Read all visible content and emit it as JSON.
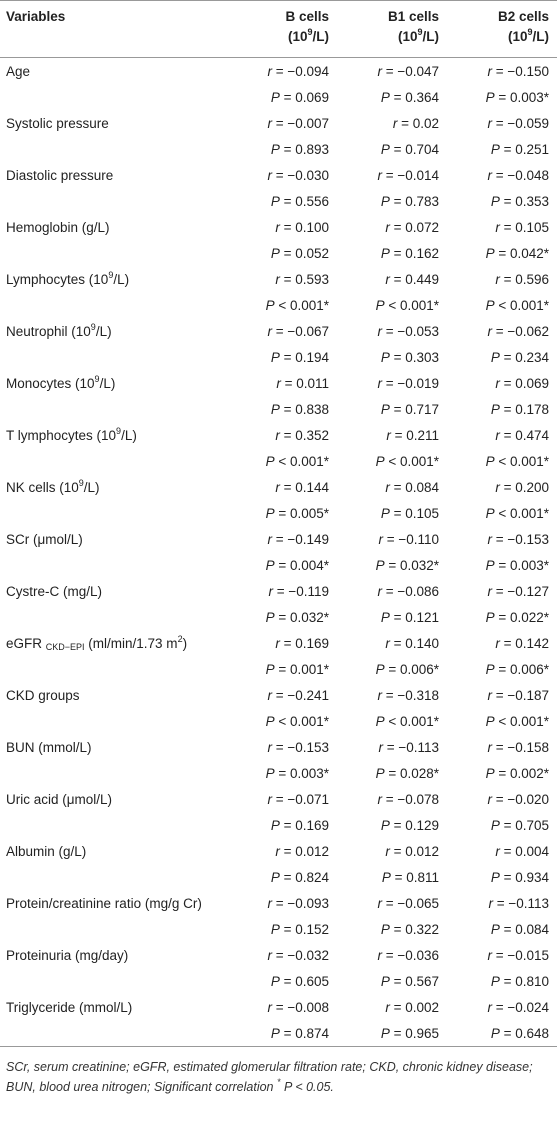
{
  "table": {
    "headers": [
      {
        "main": "Variables"
      },
      {
        "main": "B cells",
        "mid": "(10",
        "sup": "9",
        "end": "/L)"
      },
      {
        "main": "B1 cells",
        "mid": "(10",
        "sup": "9",
        "end": "/L)"
      },
      {
        "main": "B2 cells",
        "mid": "(10",
        "sup": "9",
        "end": "/L)"
      }
    ],
    "rows": [
      {
        "label": {
          "main": "Age"
        },
        "r": [
          "r = −0.094",
          "r = −0.047",
          "r = −0.150"
        ],
        "P": [
          "P = 0.069",
          "P = 0.364",
          "P = 0.003*"
        ]
      },
      {
        "label": {
          "main": "Systolic pressure"
        },
        "r": [
          "r = −0.007",
          "r = 0.02",
          "r = −0.059"
        ],
        "P": [
          "P = 0.893",
          "P = 0.704",
          "P = 0.251"
        ]
      },
      {
        "label": {
          "main": "Diastolic pressure"
        },
        "r": [
          "r = −0.030",
          "r = −0.014",
          "r = −0.048"
        ],
        "P": [
          "P = 0.556",
          "P = 0.783",
          "P = 0.353"
        ]
      },
      {
        "label": {
          "main": "Hemoglobin (g/L)"
        },
        "r": [
          "r = 0.100",
          "r = 0.072",
          "r = 0.105"
        ],
        "P": [
          "P = 0.052",
          "P = 0.162",
          "P = 0.042*"
        ]
      },
      {
        "label": {
          "main": "Lymphocytes (10",
          "sup": "9",
          "end": "/L)"
        },
        "r": [
          "r = 0.593",
          "r = 0.449",
          "r = 0.596"
        ],
        "P": [
          "P < 0.001*",
          "P < 0.001*",
          "P < 0.001*"
        ]
      },
      {
        "label": {
          "main": "Neutrophil (10",
          "sup": "9",
          "end": "/L)"
        },
        "r": [
          "r = −0.067",
          "r = −0.053",
          "r = −0.062"
        ],
        "P": [
          "P = 0.194",
          "P = 0.303",
          "P = 0.234"
        ]
      },
      {
        "label": {
          "main": "Monocytes (10",
          "sup": "9",
          "end": "/L)"
        },
        "r": [
          "r = 0.011",
          "r = −0.019",
          "r = 0.069"
        ],
        "P": [
          "P = 0.838",
          "P = 0.717",
          "P = 0.178"
        ]
      },
      {
        "label": {
          "main": "T lymphocytes (10",
          "sup": "9",
          "end": "/L)"
        },
        "r": [
          "r = 0.352",
          "r = 0.211",
          "r = 0.474"
        ],
        "P": [
          "P < 0.001*",
          "P < 0.001*",
          "P < 0.001*"
        ]
      },
      {
        "label": {
          "main": "NK cells (10",
          "sup": "9",
          "end": "/L)"
        },
        "r": [
          "r = 0.144",
          "r = 0.084",
          "r = 0.200"
        ],
        "P": [
          "P = 0.005*",
          "P = 0.105",
          "P < 0.001*"
        ]
      },
      {
        "label": {
          "main": "SCr (μmol/L)"
        },
        "r": [
          "r = −0.149",
          "r = −0.110",
          "r = −0.153"
        ],
        "P": [
          "P = 0.004*",
          "P = 0.032*",
          "P = 0.003*"
        ]
      },
      {
        "label": {
          "main": "Cystre-C (mg/L)"
        },
        "r": [
          "r = −0.119",
          "r = −0.086",
          "r = −0.127"
        ],
        "P": [
          "P = 0.032*",
          "P = 0.121",
          "P = 0.022*"
        ]
      },
      {
        "label": {
          "main": "eGFR ",
          "sub": "CKD−EPI",
          "mid": " (ml/min/1.73 m",
          "sup": "2",
          "end": ")"
        },
        "r": [
          "r = 0.169",
          "r = 0.140",
          "r = 0.142"
        ],
        "P": [
          "P = 0.001*",
          "P = 0.006*",
          "P = 0.006*"
        ]
      },
      {
        "label": {
          "main": "CKD groups"
        },
        "r": [
          "r = −0.241",
          "r = −0.318",
          "r = −0.187"
        ],
        "P": [
          "P < 0.001*",
          "P < 0.001*",
          "P < 0.001*"
        ]
      },
      {
        "label": {
          "main": "BUN (mmol/L)"
        },
        "r": [
          "r = −0.153",
          "r = −0.113",
          "r = −0.158"
        ],
        "P": [
          "P = 0.003*",
          "P = 0.028*",
          "P = 0.002*"
        ]
      },
      {
        "label": {
          "main": "Uric acid (μmol/L)"
        },
        "r": [
          "r = −0.071",
          "r = −0.078",
          "r = −0.020"
        ],
        "P": [
          "P = 0.169",
          "P = 0.129",
          "P = 0.705"
        ]
      },
      {
        "label": {
          "main": "Albumin (g/L)"
        },
        "r": [
          "r = 0.012",
          "r = 0.012",
          "r = 0.004"
        ],
        "P": [
          "P = 0.824",
          "P = 0.811",
          "P = 0.934"
        ]
      },
      {
        "label": {
          "main": "Protein/creatinine ratio (mg/g Cr)"
        },
        "r": [
          "r = −0.093",
          "r = −0.065",
          "r = −0.113"
        ],
        "P": [
          "P = 0.152",
          "P = 0.322",
          "P = 0.084"
        ]
      },
      {
        "label": {
          "main": "Proteinuria (mg/day)"
        },
        "r": [
          "r = −0.032",
          "r = −0.036",
          "r = −0.015"
        ],
        "P": [
          "P = 0.605",
          "P = 0.567",
          "P = 0.810"
        ]
      },
      {
        "label": {
          "main": "Triglyceride (mmol/L)"
        },
        "r": [
          "r = −0.008",
          "r = 0.002",
          "r = −0.024"
        ],
        "P": [
          "P = 0.874",
          "P = 0.965",
          "P = 0.648"
        ]
      }
    ],
    "footnote": {
      "main": "SCr, serum creatinine; eGFR, estimated glomerular filtration rate; CKD, chronic kidney disease; BUN, blood urea nitrogen; Significant correlation ",
      "sup": "*",
      "end": " P < 0.05."
    }
  }
}
